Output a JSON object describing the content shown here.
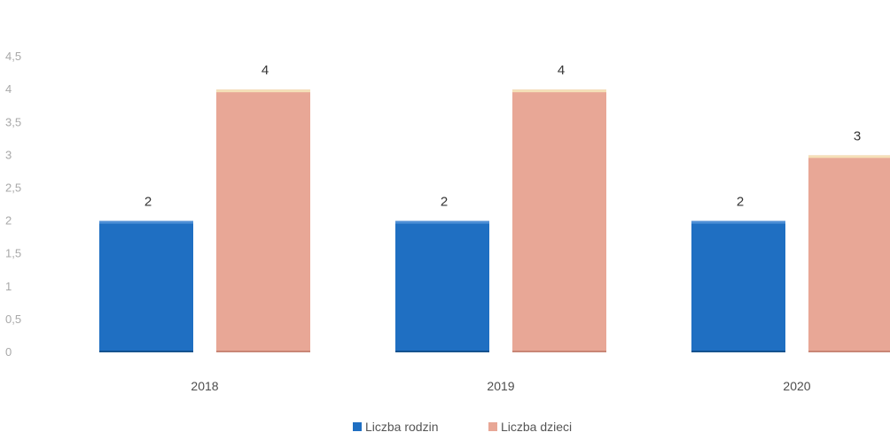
{
  "chart_data": {
    "type": "bar",
    "title": "",
    "xlabel": "",
    "ylabel": "",
    "ylim": [
      0,
      4.5
    ],
    "y_ticks": [
      "0",
      "0,5",
      "1",
      "1,5",
      "2",
      "2,5",
      "3",
      "3,5",
      "4",
      "4,5"
    ],
    "categories": [
      "2018",
      "2019",
      "2020"
    ],
    "series": [
      {
        "name": "Liczba rodzin",
        "values": [
          2,
          2,
          2
        ],
        "labels": [
          "2",
          "2",
          "2"
        ],
        "color": "#1f6fc2"
      },
      {
        "name": "Liczba dzieci",
        "values": [
          4,
          4,
          3
        ],
        "labels": [
          "4",
          "4",
          "3"
        ],
        "color": "#e8a796"
      }
    ],
    "legend_position": "bottom",
    "grid": false
  }
}
